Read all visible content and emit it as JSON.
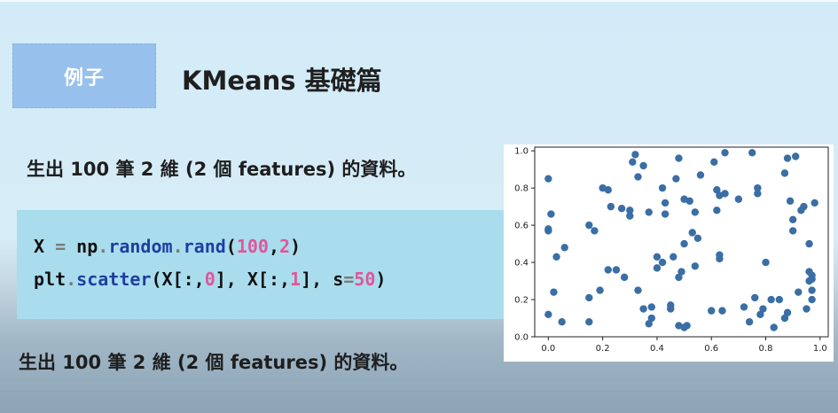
{
  "slide": {
    "badge_label": "例子",
    "title": "KMeans 基礎篇",
    "description": "生出 100 筆 2 維 (2 個 features) 的資料。",
    "code_line1": {
      "a": "X ",
      "b": "=",
      "c": " np",
      "d": ".",
      "e": "random",
      "f": ".",
      "g": "rand",
      "h": "(",
      "i": "100",
      "j": ",",
      "k": "2",
      "l": ")"
    },
    "code_line2": {
      "a": "plt",
      "b": ".",
      "c": "scatter",
      "d": "(X[:,",
      "e": "0",
      "f": "], X[:,",
      "g": "1",
      "h": "], s",
      "i": "=",
      "j": "50",
      "k": ")"
    },
    "footer": "生出 100 筆 2 維 (2 個 features) 的資料。"
  },
  "chart_data": {
    "type": "scatter",
    "marker_color": "#3a6ea5",
    "xlim": [
      -0.05,
      1.03
    ],
    "ylim": [
      0.0,
      1.02
    ],
    "xticks": [
      "0.0",
      "0.2",
      "0.4",
      "0.6",
      "0.8",
      "1.0"
    ],
    "yticks": [
      "0.0",
      "0.2",
      "0.4",
      "0.6",
      "0.8",
      "1.0"
    ],
    "grid": false,
    "points": [
      [
        0.0,
        0.85
      ],
      [
        0.0,
        0.58
      ],
      [
        0.0,
        0.57
      ],
      [
        0.01,
        0.66
      ],
      [
        0.0,
        0.12
      ],
      [
        0.02,
        0.24
      ],
      [
        0.03,
        0.43
      ],
      [
        0.06,
        0.48
      ],
      [
        0.05,
        0.08
      ],
      [
        0.15,
        0.6
      ],
      [
        0.15,
        0.21
      ],
      [
        0.17,
        0.57
      ],
      [
        0.19,
        0.25
      ],
      [
        0.15,
        0.08
      ],
      [
        0.2,
        0.8
      ],
      [
        0.22,
        0.79
      ],
      [
        0.22,
        0.36
      ],
      [
        0.23,
        0.7
      ],
      [
        0.25,
        0.36
      ],
      [
        0.27,
        0.69
      ],
      [
        0.28,
        0.32
      ],
      [
        0.3,
        0.68
      ],
      [
        0.3,
        0.65
      ],
      [
        0.31,
        0.94
      ],
      [
        0.32,
        0.98
      ],
      [
        0.33,
        0.86
      ],
      [
        0.35,
        0.92
      ],
      [
        0.33,
        0.25
      ],
      [
        0.35,
        0.15
      ],
      [
        0.37,
        0.67
      ],
      [
        0.37,
        0.07
      ],
      [
        0.38,
        0.16
      ],
      [
        0.38,
        0.1
      ],
      [
        0.4,
        0.43
      ],
      [
        0.4,
        0.37
      ],
      [
        0.42,
        0.8
      ],
      [
        0.43,
        0.72
      ],
      [
        0.43,
        0.66
      ],
      [
        0.42,
        0.4
      ],
      [
        0.45,
        0.17
      ],
      [
        0.45,
        0.15
      ],
      [
        0.46,
        0.43
      ],
      [
        0.47,
        0.85
      ],
      [
        0.48,
        0.96
      ],
      [
        0.48,
        0.06
      ],
      [
        0.48,
        0.32
      ],
      [
        0.49,
        0.35
      ],
      [
        0.5,
        0.05
      ],
      [
        0.5,
        0.5
      ],
      [
        0.5,
        0.74
      ],
      [
        0.51,
        0.06
      ],
      [
        0.53,
        0.56
      ],
      [
        0.52,
        0.73
      ],
      [
        0.54,
        0.38
      ],
      [
        0.55,
        0.53
      ],
      [
        0.54,
        0.67
      ],
      [
        0.56,
        0.87
      ],
      [
        0.6,
        0.14
      ],
      [
        0.61,
        0.94
      ],
      [
        0.62,
        0.79
      ],
      [
        0.63,
        0.76
      ],
      [
        0.63,
        0.44
      ],
      [
        0.62,
        0.68
      ],
      [
        0.63,
        0.42
      ],
      [
        0.64,
        0.14
      ],
      [
        0.65,
        0.99
      ],
      [
        0.65,
        0.77
      ],
      [
        0.7,
        0.74
      ],
      [
        0.72,
        0.16
      ],
      [
        0.74,
        0.08
      ],
      [
        0.75,
        0.99
      ],
      [
        0.77,
        0.8
      ],
      [
        0.77,
        0.77
      ],
      [
        0.76,
        0.21
      ],
      [
        0.78,
        0.12
      ],
      [
        0.8,
        0.4
      ],
      [
        0.79,
        0.15
      ],
      [
        0.82,
        0.2
      ],
      [
        0.83,
        0.05
      ],
      [
        0.85,
        0.2
      ],
      [
        0.87,
        0.1
      ],
      [
        0.87,
        0.88
      ],
      [
        0.88,
        0.96
      ],
      [
        0.88,
        0.13
      ],
      [
        0.89,
        0.73
      ],
      [
        0.9,
        0.57
      ],
      [
        0.9,
        0.63
      ],
      [
        0.91,
        0.97
      ],
      [
        0.92,
        0.24
      ],
      [
        0.93,
        0.68
      ],
      [
        0.94,
        0.7
      ],
      [
        0.95,
        0.15
      ],
      [
        0.96,
        0.5
      ],
      [
        0.96,
        0.35
      ],
      [
        0.96,
        0.3
      ],
      [
        0.97,
        0.31
      ],
      [
        0.97,
        0.25
      ],
      [
        0.97,
        0.2
      ],
      [
        0.97,
        0.33
      ],
      [
        0.98,
        0.72
      ]
    ]
  }
}
